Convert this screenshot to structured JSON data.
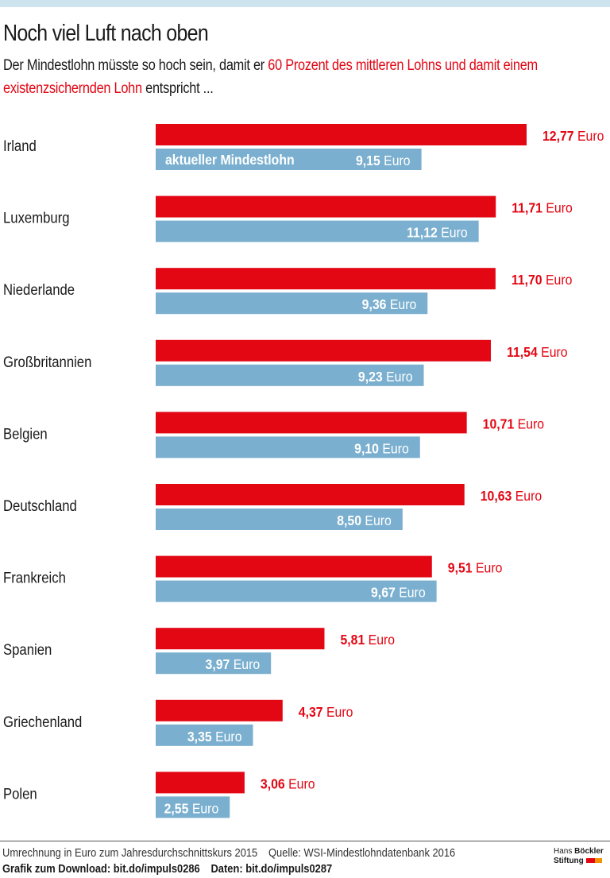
{
  "header": {
    "title": "Noch viel Luft nach oben",
    "subtitle_part1": "Der Mindestlohn müsste so hoch sein, damit er ",
    "subtitle_red1": "60 Prozent des mittleren Lohns und damit einem existenzsichernden Lohn",
    "subtitle_part2": " entspricht ..."
  },
  "colors": {
    "required": "#e30613",
    "current": "#7aafcf",
    "topbar": "#cde3ee"
  },
  "chart_data": {
    "type": "bar",
    "orientation": "horizontal",
    "title": "Noch viel Luft nach oben",
    "xlabel": "",
    "ylabel": "",
    "unit": "Euro",
    "xlim": [
      0,
      15.5
    ],
    "grid": false,
    "categories": [
      "Irland",
      "Luxemburg",
      "Niederlande",
      "Großbritannien",
      "Belgien",
      "Deutschland",
      "Frankreich",
      "Spanien",
      "Griechenland",
      "Polen"
    ],
    "series": [
      {
        "name": "existenzsichernder Lohn (60 % des mittleren Lohns)",
        "color": "#e30613",
        "values": [
          12.77,
          11.71,
          11.7,
          11.54,
          10.71,
          10.63,
          9.51,
          5.81,
          4.37,
          3.06
        ],
        "labels": [
          "12,77",
          "11,71",
          "11,70",
          "11,54",
          "10,71",
          "10,63",
          "9,51",
          "5,81",
          "4,37",
          "3,06"
        ]
      },
      {
        "name": "aktueller Mindestlohn",
        "color": "#7aafcf",
        "values": [
          9.15,
          11.12,
          9.36,
          9.23,
          9.1,
          8.5,
          9.67,
          3.97,
          3.35,
          2.55
        ],
        "labels": [
          "9,15",
          "11,12",
          "9,36",
          "9,23",
          "9,10",
          "8,50",
          "9,67",
          "3,97",
          "3,35",
          "2,55"
        ]
      }
    ],
    "inline_legend": "aktueller Mindestlohn"
  },
  "footer": {
    "note": "Umrechnung in Euro zum Jahresdurchschnittskurs 2015",
    "source": "Quelle: WSI-Mindestlohndatenbank 2016",
    "download": "Grafik zum Download: bit.do/impuls0286",
    "data_link": "Daten: bit.do/impuls0287",
    "logo_line1_a": "Hans ",
    "logo_line1_b": "Böckler",
    "logo_line2": "Stiftung"
  }
}
